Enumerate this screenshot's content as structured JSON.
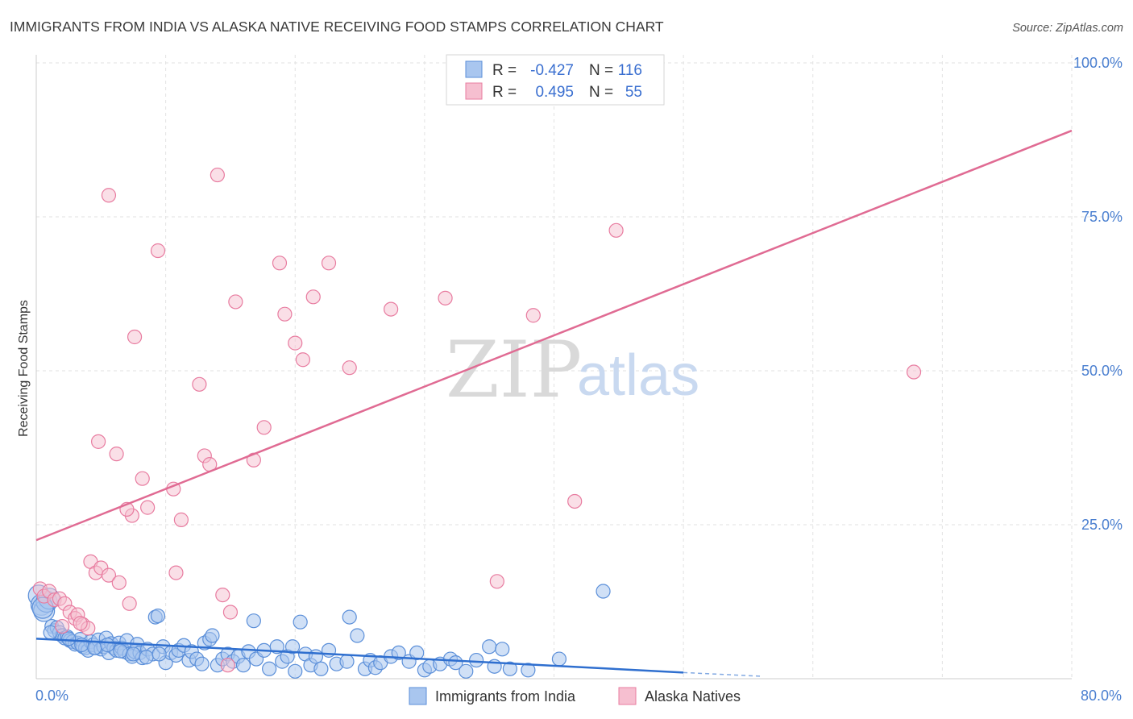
{
  "header": {
    "title": "IMMIGRANTS FROM INDIA VS ALASKA NATIVE RECEIVING FOOD STAMPS CORRELATION CHART",
    "source": "Source: ZipAtlas.com"
  },
  "watermark": {
    "zip": "ZIP",
    "atlas": "atlas"
  },
  "legend": {
    "rows": [
      {
        "r_label": "R =",
        "r_value": "-0.427",
        "n_label": "N =",
        "n_value": "116"
      },
      {
        "r_label": "R =",
        "r_value": "0.495",
        "n_label": "N =",
        "n_value": "55"
      }
    ]
  },
  "colors": {
    "blue": "#5b8fd9",
    "blue_fill": "#a9c6ef",
    "pink": "#e87ca0",
    "pink_fill": "#f6bfd0",
    "blue_line": "#2f6fcf",
    "pink_line": "#e06b93",
    "grid": "#e2e2e2"
  },
  "chart_data": {
    "type": "scatter",
    "title": "IMMIGRANTS FROM INDIA VS ALASKA NATIVE RECEIVING FOOD STAMPS CORRELATION CHART",
    "xlabel": "",
    "ylabel": "Receiving Food Stamps",
    "xlim": [
      0,
      80
    ],
    "ylim": [
      0,
      100
    ],
    "x_tick_labels": [
      "0.0%",
      "80.0%"
    ],
    "y_ticks": [
      25,
      50,
      75,
      100
    ],
    "y_tick_labels": [
      "25.0%",
      "50.0%",
      "75.0%",
      "100.0%"
    ],
    "grid": true,
    "series": [
      {
        "name": "Immigrants from India",
        "color": "#5b8fd9",
        "r": -0.427,
        "n": 116,
        "trend": {
          "x0": 0,
          "y0": 6.5,
          "x1": 50,
          "y1": 1.0,
          "dash_to_x": 56,
          "dash_to_y": 0.4
        },
        "points": [
          [
            0.2,
            13.5
          ],
          [
            0.4,
            12.0
          ],
          [
            0.6,
            11.0
          ],
          [
            0.8,
            12.5
          ],
          [
            1.0,
            13.0
          ],
          [
            1.2,
            8.5
          ],
          [
            1.4,
            7.8
          ],
          [
            1.6,
            8.3
          ],
          [
            1.8,
            7.5
          ],
          [
            2.0,
            7.0
          ],
          [
            2.2,
            6.6
          ],
          [
            2.4,
            6.8
          ],
          [
            2.6,
            6.2
          ],
          [
            2.8,
            6.0
          ],
          [
            3.0,
            5.6
          ],
          [
            3.2,
            5.8
          ],
          [
            3.4,
            6.4
          ],
          [
            3.6,
            5.2
          ],
          [
            3.8,
            5.0
          ],
          [
            4.0,
            4.6
          ],
          [
            4.2,
            6.0
          ],
          [
            4.4,
            5.5
          ],
          [
            4.6,
            5.0
          ],
          [
            4.8,
            6.3
          ],
          [
            5.0,
            4.8
          ],
          [
            5.2,
            5.2
          ],
          [
            5.4,
            6.6
          ],
          [
            5.6,
            4.2
          ],
          [
            5.8,
            5.7
          ],
          [
            6.0,
            5.0
          ],
          [
            6.2,
            4.6
          ],
          [
            6.4,
            5.8
          ],
          [
            6.6,
            5.0
          ],
          [
            6.8,
            4.4
          ],
          [
            7.0,
            6.2
          ],
          [
            7.2,
            4.0
          ],
          [
            7.4,
            3.6
          ],
          [
            7.6,
            4.4
          ],
          [
            7.8,
            5.6
          ],
          [
            8.0,
            4.2
          ],
          [
            8.2,
            3.4
          ],
          [
            8.6,
            4.8
          ],
          [
            9.0,
            4.0
          ],
          [
            9.2,
            10.0
          ],
          [
            9.4,
            10.2
          ],
          [
            9.8,
            5.2
          ],
          [
            10.0,
            2.6
          ],
          [
            10.4,
            4.2
          ],
          [
            10.8,
            3.8
          ],
          [
            11.0,
            4.6
          ],
          [
            11.4,
            5.4
          ],
          [
            11.8,
            3.0
          ],
          [
            12.0,
            4.4
          ],
          [
            12.4,
            3.2
          ],
          [
            12.8,
            2.4
          ],
          [
            13.0,
            5.8
          ],
          [
            13.4,
            6.4
          ],
          [
            13.6,
            7.0
          ],
          [
            14.0,
            2.2
          ],
          [
            14.4,
            3.2
          ],
          [
            14.8,
            4.0
          ],
          [
            15.2,
            2.8
          ],
          [
            15.6,
            3.6
          ],
          [
            16.0,
            2.2
          ],
          [
            16.4,
            4.4
          ],
          [
            16.8,
            9.4
          ],
          [
            17.0,
            3.2
          ],
          [
            17.6,
            4.6
          ],
          [
            18.0,
            1.6
          ],
          [
            18.6,
            5.2
          ],
          [
            19.0,
            2.8
          ],
          [
            19.4,
            3.6
          ],
          [
            19.8,
            5.2
          ],
          [
            20.0,
            1.2
          ],
          [
            20.4,
            9.2
          ],
          [
            20.8,
            4.0
          ],
          [
            21.2,
            2.2
          ],
          [
            21.6,
            3.6
          ],
          [
            22.0,
            1.6
          ],
          [
            22.6,
            4.6
          ],
          [
            23.2,
            2.4
          ],
          [
            24.0,
            2.8
          ],
          [
            24.2,
            10.0
          ],
          [
            24.8,
            7.0
          ],
          [
            25.4,
            1.6
          ],
          [
            25.8,
            3.0
          ],
          [
            26.2,
            1.8
          ],
          [
            26.6,
            2.6
          ],
          [
            27.4,
            3.6
          ],
          [
            28.0,
            4.2
          ],
          [
            28.8,
            2.8
          ],
          [
            29.4,
            4.2
          ],
          [
            30.0,
            1.4
          ],
          [
            30.4,
            2.0
          ],
          [
            31.2,
            2.4
          ],
          [
            32.0,
            3.2
          ],
          [
            32.4,
            2.6
          ],
          [
            33.2,
            1.2
          ],
          [
            34.0,
            3.0
          ],
          [
            35.0,
            5.2
          ],
          [
            35.4,
            2.0
          ],
          [
            36.0,
            4.8
          ],
          [
            36.6,
            1.6
          ],
          [
            38.0,
            1.4
          ],
          [
            40.4,
            3.2
          ],
          [
            43.8,
            14.2
          ],
          [
            1.1,
            7.5
          ],
          [
            2.5,
            6.5
          ],
          [
            3.5,
            5.5
          ],
          [
            4.5,
            5.0
          ],
          [
            5.5,
            5.5
          ],
          [
            6.5,
            4.5
          ],
          [
            7.5,
            4.0
          ],
          [
            8.5,
            3.5
          ],
          [
            9.5,
            4.0
          ],
          [
            0.5,
            11.5
          ]
        ]
      },
      {
        "name": "Alaska Natives",
        "color": "#e87ca0",
        "r": 0.495,
        "n": 55,
        "trend": {
          "x0": 0,
          "y0": 22.5,
          "x1": 80,
          "y1": 89.0
        },
        "points": [
          [
            0.3,
            14.6
          ],
          [
            0.6,
            13.4
          ],
          [
            1.0,
            14.2
          ],
          [
            1.4,
            12.8
          ],
          [
            1.8,
            13.0
          ],
          [
            2.2,
            12.2
          ],
          [
            2.6,
            10.8
          ],
          [
            3.0,
            9.8
          ],
          [
            3.2,
            10.4
          ],
          [
            3.6,
            8.8
          ],
          [
            4.0,
            8.2
          ],
          [
            4.2,
            19.0
          ],
          [
            4.6,
            17.2
          ],
          [
            5.0,
            18.0
          ],
          [
            5.6,
            16.8
          ],
          [
            6.4,
            15.6
          ],
          [
            4.8,
            38.5
          ],
          [
            5.6,
            78.5
          ],
          [
            6.2,
            36.5
          ],
          [
            7.2,
            12.2
          ],
          [
            7.6,
            55.5
          ],
          [
            7.4,
            26.5
          ],
          [
            7.0,
            27.5
          ],
          [
            8.2,
            32.5
          ],
          [
            8.6,
            27.8
          ],
          [
            9.4,
            69.5
          ],
          [
            10.6,
            30.8
          ],
          [
            10.8,
            17.2
          ],
          [
            11.2,
            25.8
          ],
          [
            12.6,
            47.8
          ],
          [
            13.0,
            36.2
          ],
          [
            13.4,
            34.8
          ],
          [
            14.0,
            81.8
          ],
          [
            14.4,
            13.6
          ],
          [
            14.8,
            2.2
          ],
          [
            15.0,
            10.8
          ],
          [
            15.4,
            61.2
          ],
          [
            16.8,
            35.5
          ],
          [
            17.6,
            40.8
          ],
          [
            18.8,
            67.5
          ],
          [
            19.2,
            59.2
          ],
          [
            20.0,
            54.5
          ],
          [
            20.6,
            51.8
          ],
          [
            21.4,
            62.0
          ],
          [
            22.6,
            67.5
          ],
          [
            24.2,
            50.5
          ],
          [
            27.4,
            60.0
          ],
          [
            31.6,
            61.8
          ],
          [
            35.6,
            15.8
          ],
          [
            38.4,
            59.0
          ],
          [
            41.6,
            28.8
          ],
          [
            44.8,
            72.8
          ],
          [
            67.8,
            49.8
          ],
          [
            2.0,
            8.5
          ],
          [
            3.4,
            9.0
          ]
        ]
      }
    ]
  },
  "bottom_legend": [
    {
      "label": "Immigrants from India"
    },
    {
      "label": "Alaska Natives"
    }
  ]
}
